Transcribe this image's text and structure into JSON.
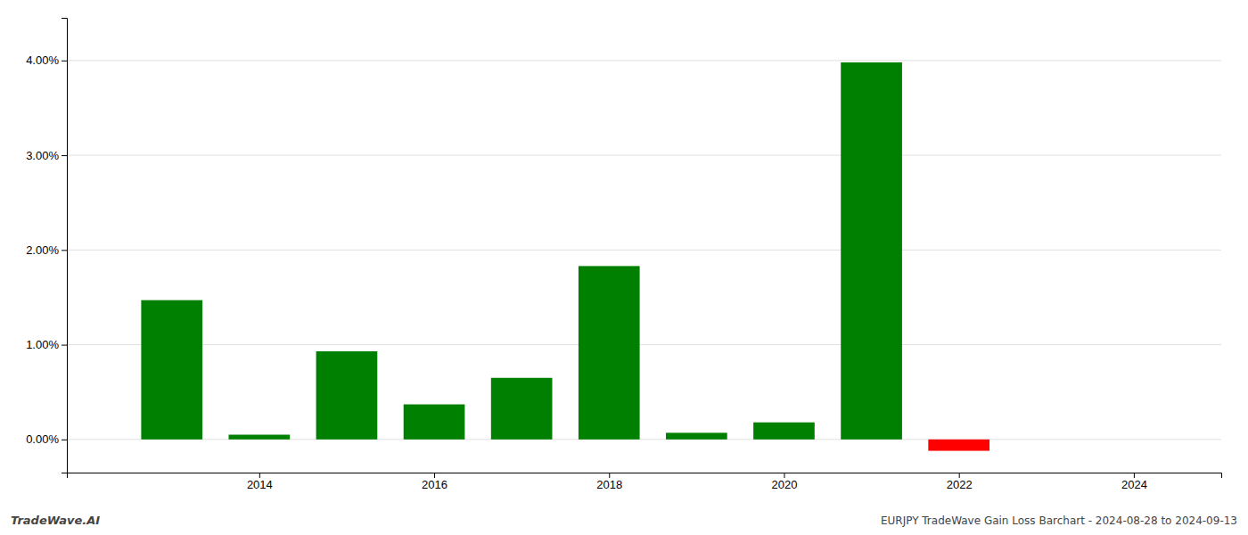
{
  "chart_data": {
    "type": "bar",
    "x": [
      2013,
      2014,
      2015,
      2016,
      2017,
      2018,
      2019,
      2020,
      2021,
      2022
    ],
    "values": [
      1.47,
      0.05,
      0.93,
      0.37,
      0.65,
      1.83,
      0.07,
      0.18,
      3.98,
      -0.12
    ],
    "colors": [
      "#008000",
      "#008000",
      "#008000",
      "#008000",
      "#008000",
      "#008000",
      "#008000",
      "#008000",
      "#008000",
      "#ff0000"
    ],
    "xlim": [
      2011.8,
      2025.0
    ],
    "xticks": [
      2014,
      2016,
      2018,
      2020,
      2022,
      2024
    ],
    "ylim": [
      -0.35,
      4.45
    ],
    "yticks": [
      {
        "value": 0.0,
        "label": "0.00%"
      },
      {
        "value": 1.0,
        "label": "1.00%"
      },
      {
        "value": 2.0,
        "label": "2.00%"
      },
      {
        "value": 3.0,
        "label": "3.00%"
      },
      {
        "value": 4.0,
        "label": "4.00%"
      }
    ],
    "grid": true,
    "annotations": [
      "TradeWave.AI",
      "EURJPY TradeWave Gain Loss Barchart - 2024-08-28 to 2024-09-13"
    ]
  }
}
